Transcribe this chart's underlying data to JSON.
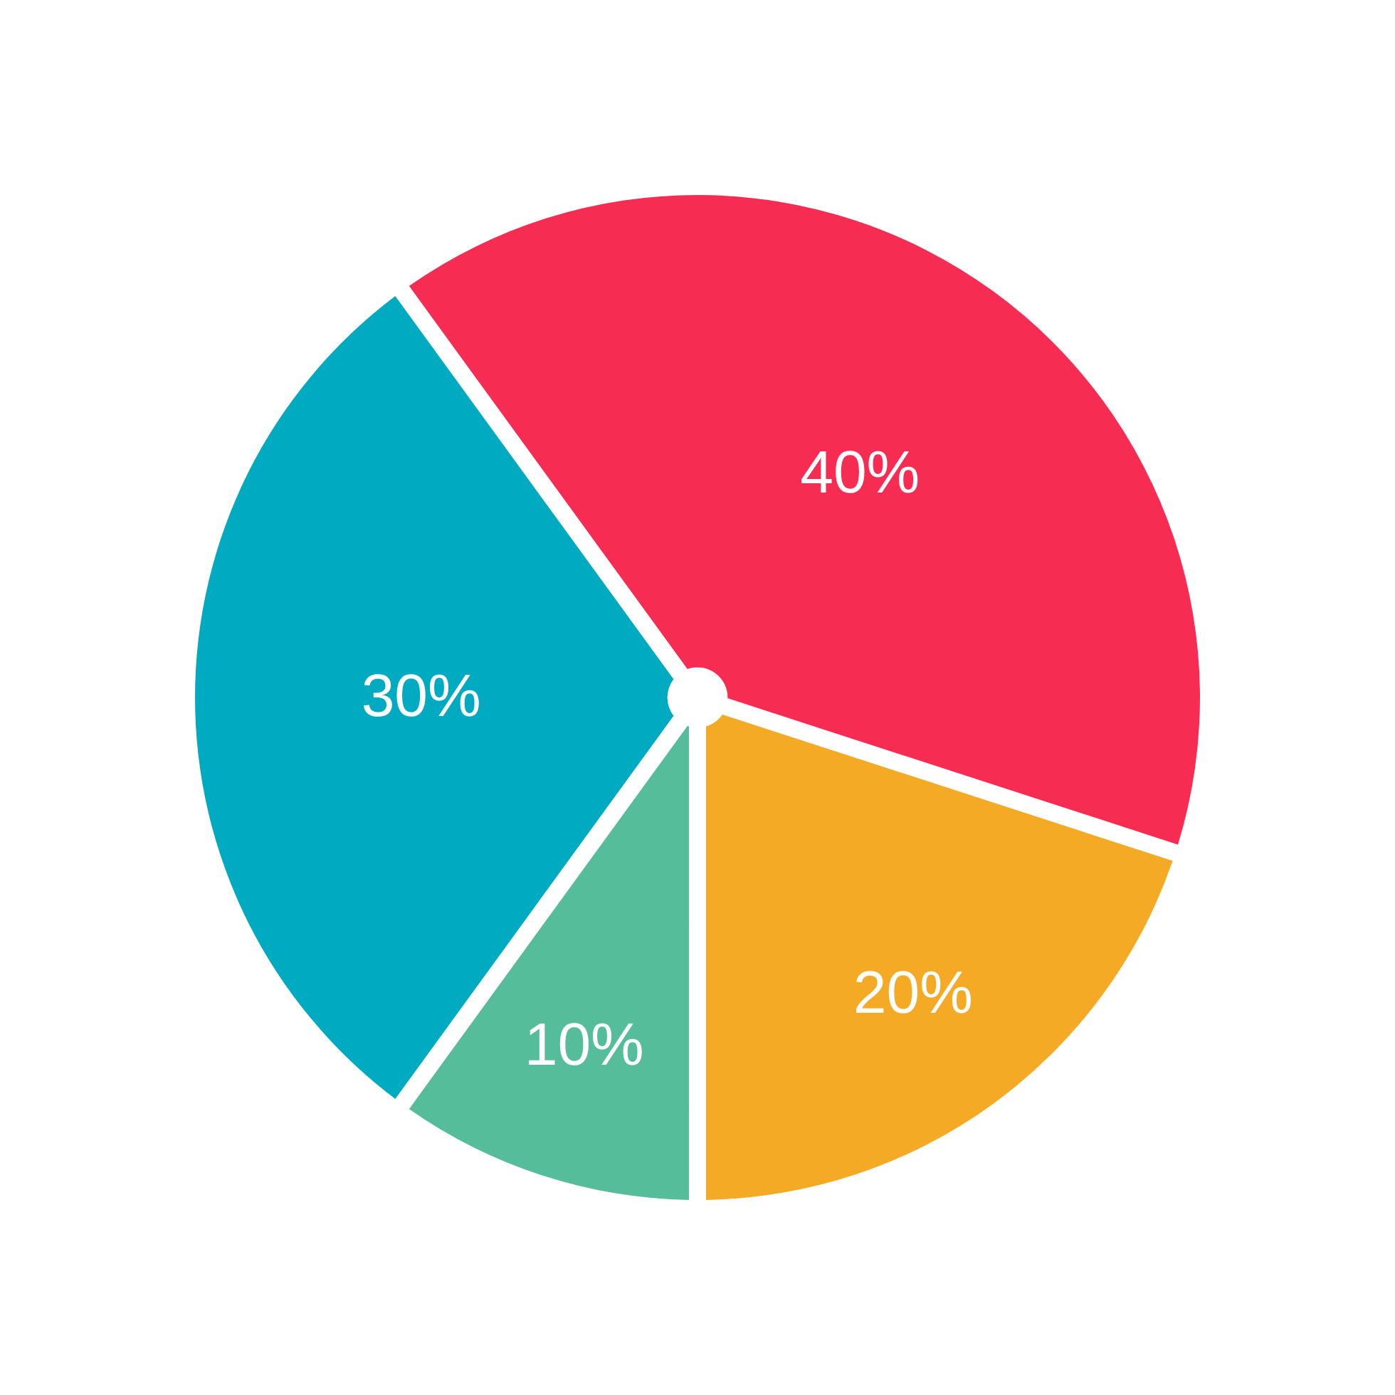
{
  "chart_data": {
    "type": "pie",
    "categories": [
      null,
      null,
      null,
      null
    ],
    "values": [
      40,
      20,
      10,
      30
    ],
    "colors": [
      "#f72c52",
      "#f4aa24",
      "#56bd9b",
      "#00abc2"
    ],
    "value_labels": [
      "40%",
      "20%",
      "10%",
      "30%"
    ]
  }
}
